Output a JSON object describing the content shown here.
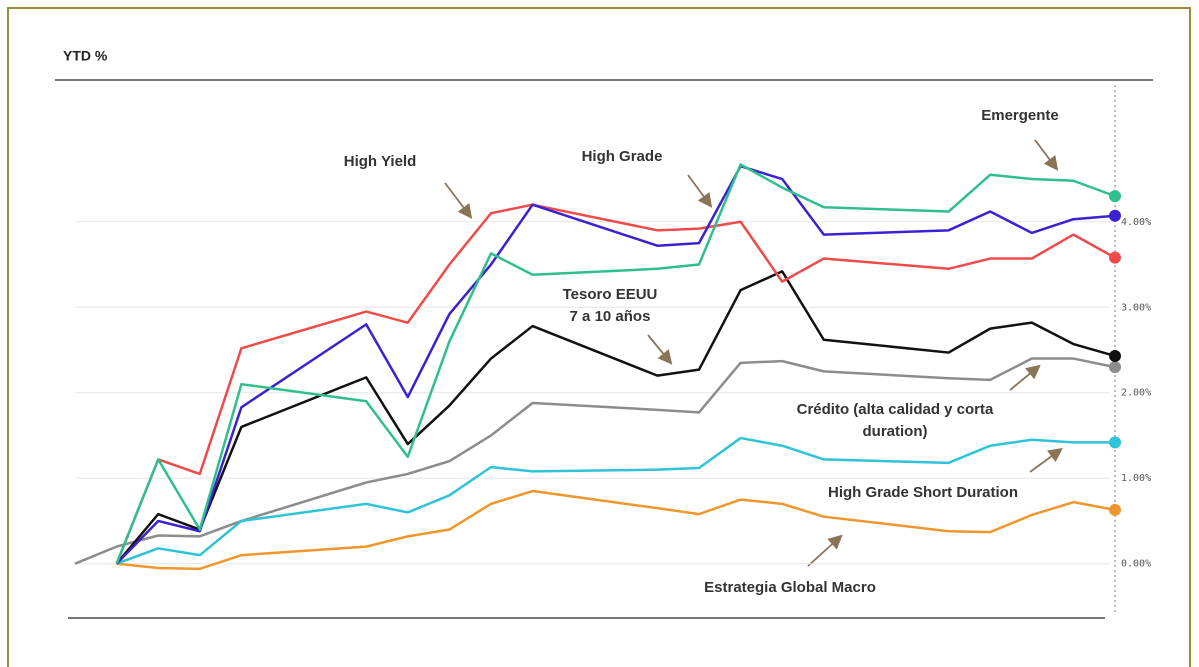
{
  "chart_data": {
    "type": "line",
    "title": "YTD %",
    "x": [
      0,
      1,
      2,
      3,
      4,
      7,
      8,
      9,
      10,
      11,
      14,
      15,
      16,
      17,
      18,
      21,
      22,
      23,
      24,
      25
    ],
    "xlim": [
      0,
      25
    ],
    "ylim": [
      -0.6,
      5.6
    ],
    "yticks": [
      {
        "value": 0,
        "label": "0.00%"
      },
      {
        "value": 1,
        "label": "1.00%"
      },
      {
        "value": 2,
        "label": "2.00%"
      },
      {
        "value": 3,
        "label": "3.00%"
      },
      {
        "value": 4,
        "label": "4.00%"
      }
    ],
    "grid": true,
    "series": [
      {
        "color": "#8c8c8c",
        "values": [
          0,
          0.2,
          0.33,
          0.32,
          0.5,
          0.95,
          1.05,
          1.2,
          1.5,
          1.88,
          1.8,
          1.77,
          2.35,
          2.37,
          2.25,
          2.17,
          2.15,
          2.4,
          2.4,
          2.3
        ]
      },
      {
        "color": "#f0962d",
        "values": [
          null,
          0,
          -0.05,
          -0.06,
          0.1,
          0.2,
          0.32,
          0.4,
          0.7,
          0.85,
          0.65,
          0.58,
          0.75,
          0.7,
          0.55,
          0.38,
          0.37,
          0.57,
          0.72,
          0.63
        ]
      },
      {
        "color": "#2ec3d6",
        "values": [
          null,
          0,
          0.18,
          0.1,
          0.5,
          0.7,
          0.6,
          0.8,
          1.13,
          1.08,
          1.1,
          1.12,
          1.47,
          1.38,
          1.22,
          1.18,
          1.38,
          1.45,
          1.42,
          1.42
        ]
      },
      {
        "color": "#111111",
        "values": [
          null,
          0,
          0.58,
          0.4,
          1.6,
          2.18,
          1.4,
          1.85,
          2.4,
          2.78,
          2.2,
          2.27,
          3.2,
          3.42,
          2.62,
          2.47,
          2.75,
          2.82,
          2.57,
          2.43
        ]
      },
      {
        "color": "#ef4b4b",
        "values": [
          null,
          0,
          1.22,
          1.05,
          2.52,
          2.95,
          2.82,
          3.5,
          4.1,
          4.2,
          3.9,
          3.92,
          4.0,
          3.3,
          3.57,
          3.45,
          3.57,
          3.57,
          3.85,
          3.58
        ]
      },
      {
        "color": "#3a22d0",
        "values": [
          null,
          0,
          0.5,
          0.38,
          1.83,
          2.8,
          1.95,
          2.92,
          3.5,
          4.2,
          3.72,
          3.75,
          4.65,
          4.5,
          3.85,
          3.9,
          4.12,
          3.87,
          4.03,
          4.07
        ]
      },
      {
        "color": "#2fbf8c",
        "values": [
          null,
          0,
          1.22,
          0.4,
          2.1,
          1.9,
          1.25,
          2.6,
          3.63,
          3.38,
          3.45,
          3.5,
          4.67,
          4.4,
          4.17,
          4.12,
          4.55,
          4.5,
          4.48,
          4.3
        ]
      }
    ],
    "annotations": [
      {
        "lines": [
          "High Yield"
        ]
      },
      {
        "lines": [
          "High Grade"
        ]
      },
      {
        "lines": [
          "Emergente"
        ]
      },
      {
        "lines": [
          "Tesoro EEUU",
          "7 a 10 años"
        ]
      },
      {
        "lines": [
          "Crédito (alta calidad y corta",
          "duration)"
        ]
      },
      {
        "lines": [
          "High Grade Short Duration"
        ]
      },
      {
        "lines": [
          "Estrategia Global Macro"
        ]
      }
    ]
  }
}
